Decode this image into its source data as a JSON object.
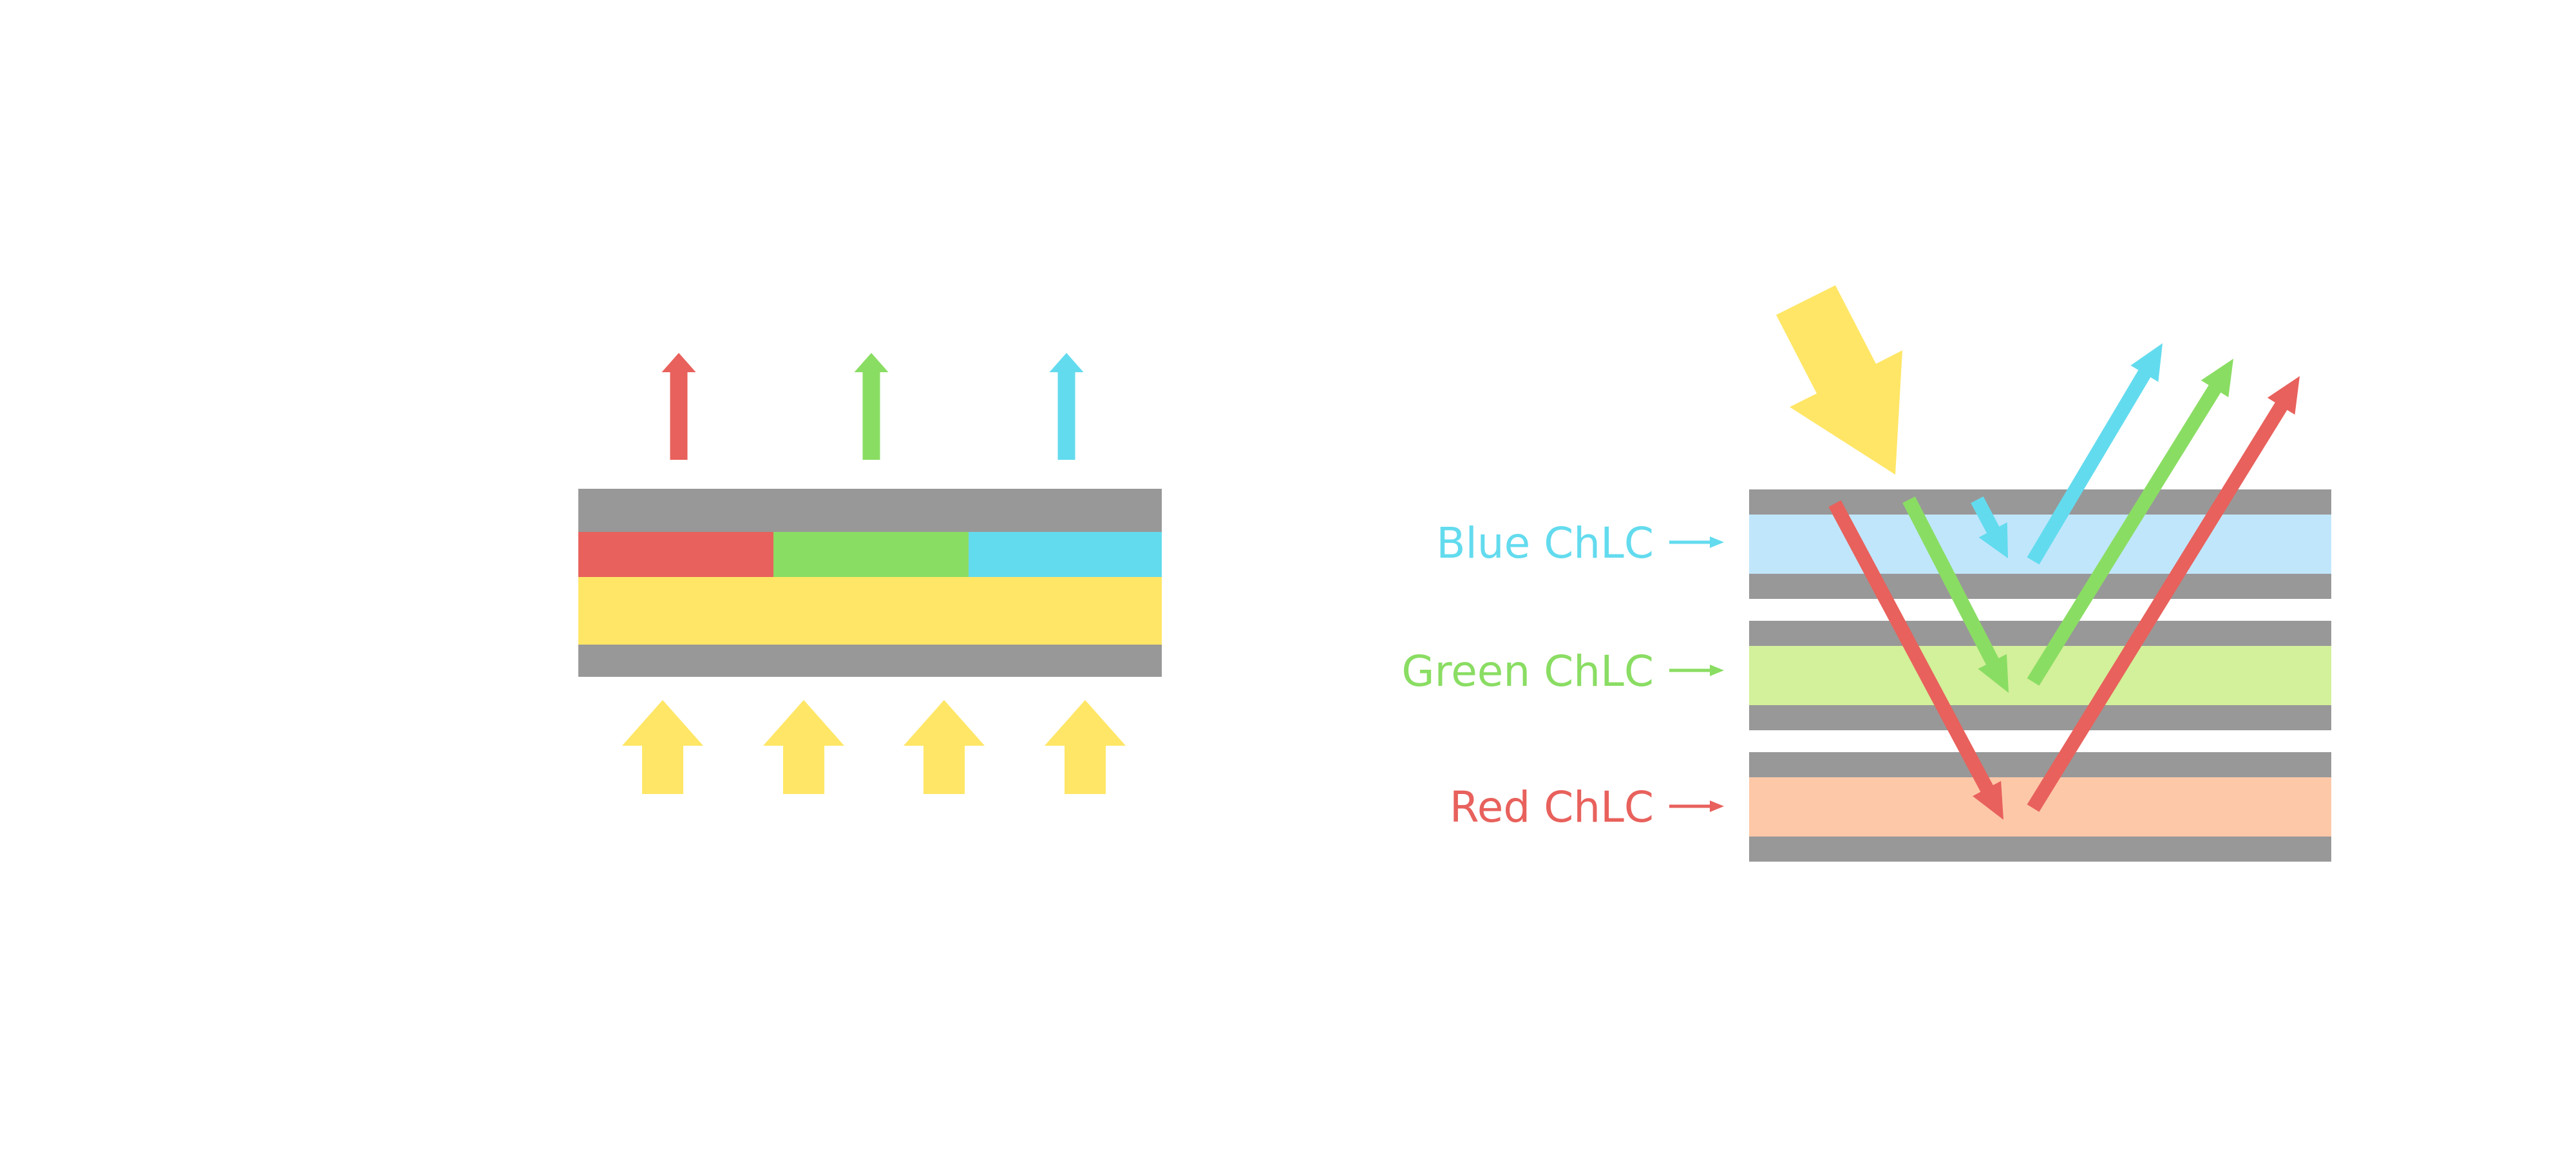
{
  "colors": {
    "red": "#E8615C",
    "green": "#8ADD63",
    "blue": "#63DBEE",
    "yellow": "#FFE666",
    "gray": "#989898",
    "light_blue": "#C0E6FC",
    "light_green": "#D3F09A",
    "peach": "#FDC8A8"
  },
  "right_panel": {
    "layers": [
      {
        "label": "Blue ChLC",
        "color_key": "blue",
        "fill_key": "light_blue"
      },
      {
        "label": "Green ChLC",
        "color_key": "green",
        "fill_key": "light_green"
      },
      {
        "label": "Red ChLC",
        "color_key": "red",
        "fill_key": "peach"
      }
    ]
  }
}
